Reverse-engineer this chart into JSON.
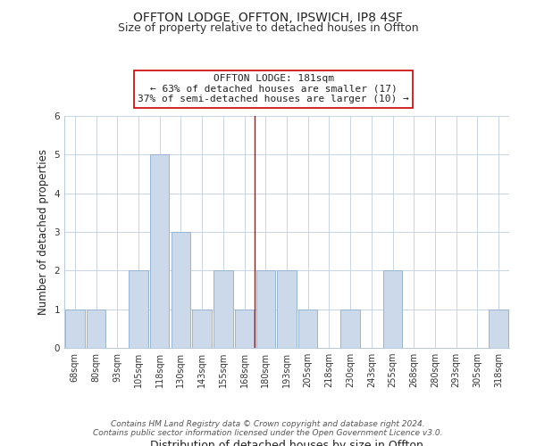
{
  "title": "OFFTON LODGE, OFFTON, IPSWICH, IP8 4SF",
  "subtitle": "Size of property relative to detached houses in Offton",
  "xlabel": "Distribution of detached houses by size in Offton",
  "ylabel": "Number of detached properties",
  "bar_labels": [
    "68sqm",
    "80sqm",
    "93sqm",
    "105sqm",
    "118sqm",
    "130sqm",
    "143sqm",
    "155sqm",
    "168sqm",
    "180sqm",
    "193sqm",
    "205sqm",
    "218sqm",
    "230sqm",
    "243sqm",
    "255sqm",
    "268sqm",
    "280sqm",
    "293sqm",
    "305sqm",
    "318sqm"
  ],
  "bar_values": [
    1,
    1,
    0,
    2,
    5,
    3,
    1,
    2,
    1,
    2,
    2,
    1,
    0,
    1,
    0,
    2,
    0,
    0,
    0,
    0,
    1
  ],
  "bar_color": "#ccd9ea",
  "bar_edge_color": "#96b4d2",
  "vline_x": 8.5,
  "vline_color": "#cc0000",
  "annotation_title": "OFFTON LODGE: 181sqm",
  "annotation_line1": "← 63% of detached houses are smaller (17)",
  "annotation_line2": "37% of semi-detached houses are larger (10) →",
  "annotation_box_color": "#ffffff",
  "annotation_box_edge": "#cc0000",
  "ylim": [
    0,
    6
  ],
  "yticks": [
    0,
    1,
    2,
    3,
    4,
    5,
    6
  ],
  "footer1": "Contains HM Land Registry data © Crown copyright and database right 2024.",
  "footer2": "Contains public sector information licensed under the Open Government Licence v3.0.",
  "bg_color": "#ffffff",
  "grid_color": "#c8d4e4",
  "title_fontsize": 10,
  "subtitle_fontsize": 9,
  "xlabel_fontsize": 9,
  "ylabel_fontsize": 8.5,
  "tick_fontsize": 7,
  "annotation_fontsize": 8,
  "footer_fontsize": 6.5
}
